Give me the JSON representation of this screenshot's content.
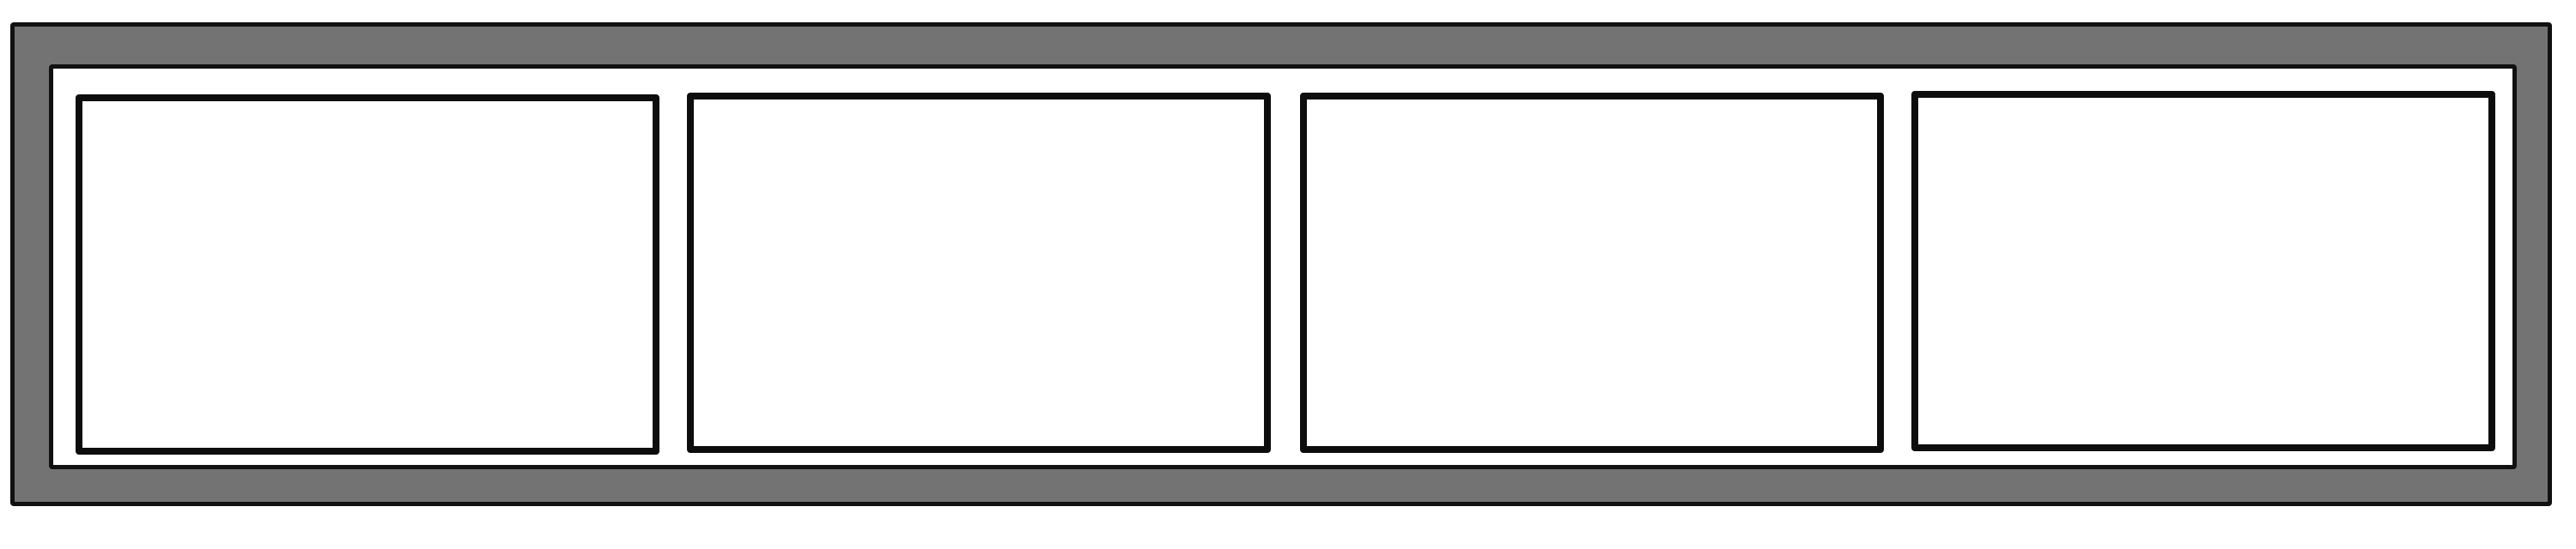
{
  "panels": [
    {
      "label": ""
    },
    {
      "label": ""
    },
    {
      "label": ""
    },
    {
      "label": ""
    }
  ],
  "colors": {
    "frame": "#737373",
    "outline": "#111111",
    "panel_fill": "#ffffff"
  }
}
